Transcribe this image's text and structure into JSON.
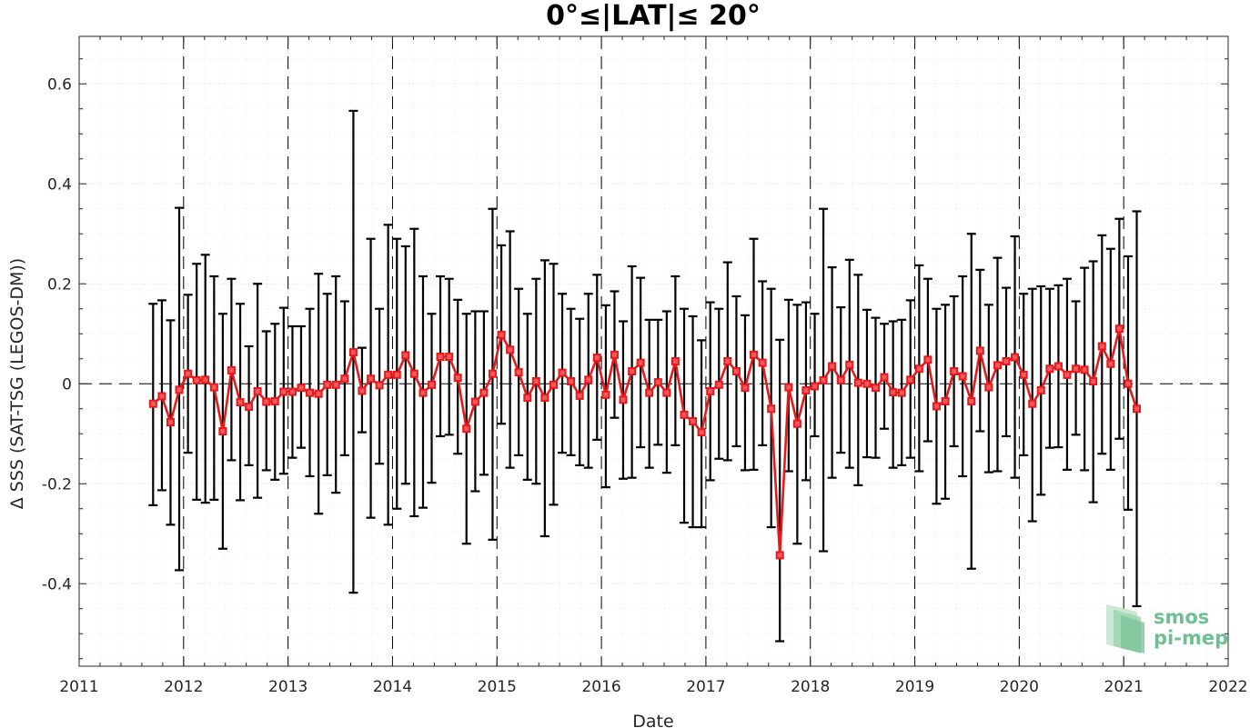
{
  "chart_data": {
    "type": "line",
    "title": "0°≤|LAT|≤ 20°",
    "xlabel": "Date",
    "ylabel": "Δ SSS (SAT-TSG (LEGOS-DM))",
    "xlim": [
      2011,
      2022
    ],
    "ylim": [
      -0.565,
      0.695
    ],
    "x_ticks": [
      "2011",
      "2012",
      "2013",
      "2014",
      "2015",
      "2016",
      "2017",
      "2018",
      "2019",
      "2020",
      "2021",
      "2022"
    ],
    "y_ticks": [
      {
        "value": -0.4,
        "label": "-0.4"
      },
      {
        "value": -0.2,
        "label": "-0.2"
      },
      {
        "value": 0,
        "label": "0"
      },
      {
        "value": 0.2,
        "label": "0.2"
      },
      {
        "value": 0.4,
        "label": "0.4"
      },
      {
        "value": 0.6,
        "label": "0.6"
      }
    ],
    "grid": true,
    "reference_lines": {
      "zero_line": 0,
      "year_lines": [
        2012,
        2013,
        2014,
        2015,
        2016,
        2017,
        2018,
        2019,
        2020,
        2021
      ]
    },
    "colors": {
      "mean": "#e8191c",
      "error_bar": "#000000",
      "grid": "#d9d9d9"
    },
    "series": [
      {
        "type": "errorbar",
        "marker": "square",
        "x": [
          2011.708,
          2011.792,
          2011.875,
          2011.958,
          2012.042,
          2012.125,
          2012.208,
          2012.292,
          2012.375,
          2012.458,
          2012.542,
          2012.625,
          2012.708,
          2012.792,
          2012.875,
          2012.958,
          2013.042,
          2013.125,
          2013.208,
          2013.292,
          2013.375,
          2013.458,
          2013.542,
          2013.625,
          2013.708,
          2013.792,
          2013.875,
          2013.958,
          2014.042,
          2014.125,
          2014.208,
          2014.292,
          2014.375,
          2014.458,
          2014.542,
          2014.625,
          2014.708,
          2014.792,
          2014.875,
          2014.958,
          2015.042,
          2015.125,
          2015.208,
          2015.292,
          2015.375,
          2015.458,
          2015.542,
          2015.625,
          2015.708,
          2015.792,
          2015.875,
          2015.958,
          2016.042,
          2016.125,
          2016.208,
          2016.292,
          2016.375,
          2016.458,
          2016.542,
          2016.625,
          2016.708,
          2016.792,
          2016.875,
          2016.958,
          2017.042,
          2017.125,
          2017.208,
          2017.292,
          2017.375,
          2017.458,
          2017.542,
          2017.625,
          2017.708,
          2017.792,
          2017.875,
          2017.958,
          2018.042,
          2018.125,
          2018.208,
          2018.292,
          2018.375,
          2018.458,
          2018.542,
          2018.625,
          2018.708,
          2018.792,
          2018.875,
          2018.958,
          2019.042,
          2019.125,
          2019.208,
          2019.292,
          2019.375,
          2019.458,
          2019.542,
          2019.625,
          2019.708,
          2019.792,
          2019.875,
          2019.958,
          2020.042,
          2020.125,
          2020.208,
          2020.292,
          2020.375,
          2020.458,
          2020.542,
          2020.625,
          2020.708,
          2020.792,
          2020.875,
          2020.958,
          2021.042,
          2021.125
        ],
        "y": [
          -0.04,
          -0.025,
          -0.077,
          -0.012,
          0.02,
          0.007,
          0.008,
          -0.007,
          -0.095,
          0.027,
          -0.037,
          -0.046,
          -0.015,
          -0.036,
          -0.035,
          -0.016,
          -0.016,
          -0.008,
          -0.018,
          -0.02,
          -0.002,
          -0.002,
          0.01,
          0.063,
          -0.014,
          0.01,
          -0.003,
          0.018,
          0.018,
          0.057,
          0.02,
          -0.018,
          -0.002,
          0.054,
          0.054,
          0.012,
          -0.09,
          -0.036,
          -0.018,
          0.02,
          0.098,
          0.068,
          0.023,
          -0.028,
          0.005,
          -0.028,
          -0.002,
          0.022,
          0.005,
          -0.024,
          0.008,
          0.052,
          -0.022,
          0.058,
          -0.032,
          0.025,
          0.042,
          -0.018,
          0.003,
          -0.018,
          0.045,
          -0.062,
          -0.075,
          -0.097,
          -0.015,
          -0.002,
          0.045,
          0.025,
          -0.008,
          0.058,
          0.042,
          -0.05,
          -0.343,
          -0.007,
          -0.08,
          -0.013,
          -0.005,
          0.007,
          0.035,
          0.007,
          0.038,
          0.002,
          0.0,
          -0.008,
          0.013,
          -0.017,
          -0.018,
          0.008,
          0.03,
          0.048,
          -0.045,
          -0.035,
          0.025,
          0.015,
          -0.035,
          0.066,
          -0.007,
          0.037,
          0.045,
          0.053,
          0.018,
          -0.04,
          -0.013,
          0.03,
          0.035,
          0.018,
          0.03,
          0.028,
          0.005,
          0.075,
          0.04,
          0.11,
          0.0,
          -0.05
        ],
        "y_upper": [
          0.16,
          0.167,
          0.127,
          0.352,
          0.178,
          0.24,
          0.258,
          0.215,
          0.14,
          0.21,
          0.16,
          0.075,
          0.2,
          0.105,
          0.12,
          0.152,
          0.115,
          0.115,
          0.15,
          0.22,
          0.18,
          0.215,
          0.165,
          0.546,
          0.072,
          0.29,
          0.15,
          0.318,
          0.29,
          0.275,
          0.31,
          0.215,
          0.14,
          0.215,
          0.21,
          0.168,
          0.14,
          0.145,
          0.145,
          0.35,
          0.277,
          0.305,
          0.19,
          0.14,
          0.21,
          0.247,
          0.24,
          0.18,
          0.15,
          0.13,
          0.18,
          0.218,
          0.157,
          0.185,
          0.125,
          0.235,
          0.212,
          0.128,
          0.128,
          0.145,
          0.215,
          0.15,
          0.135,
          0.087,
          0.163,
          0.15,
          0.243,
          0.175,
          0.137,
          0.29,
          0.205,
          0.19,
          0.088,
          0.168,
          0.158,
          0.163,
          0.14,
          0.35,
          0.233,
          0.153,
          0.248,
          0.218,
          0.148,
          0.132,
          0.12,
          0.125,
          0.128,
          0.167,
          0.237,
          0.21,
          0.15,
          0.158,
          0.175,
          0.215,
          0.3,
          0.228,
          0.158,
          0.252,
          0.192,
          0.295,
          0.18,
          0.19,
          0.195,
          0.19,
          0.197,
          0.21,
          0.165,
          0.232,
          0.245,
          0.297,
          0.27,
          0.33,
          0.255,
          0.345
        ],
        "y_lower": [
          -0.243,
          -0.213,
          -0.282,
          -0.373,
          -0.138,
          -0.232,
          -0.238,
          -0.232,
          -0.33,
          -0.153,
          -0.233,
          -0.163,
          -0.228,
          -0.173,
          -0.192,
          -0.18,
          -0.148,
          -0.128,
          -0.185,
          -0.26,
          -0.183,
          -0.218,
          -0.143,
          -0.418,
          -0.097,
          -0.268,
          -0.16,
          -0.282,
          -0.25,
          -0.2,
          -0.265,
          -0.248,
          -0.198,
          -0.105,
          -0.102,
          -0.14,
          -0.32,
          -0.215,
          -0.182,
          -0.312,
          -0.08,
          -0.168,
          -0.143,
          -0.192,
          -0.2,
          -0.305,
          -0.242,
          -0.138,
          -0.143,
          -0.163,
          -0.168,
          -0.112,
          -0.207,
          -0.068,
          -0.19,
          -0.188,
          -0.127,
          -0.168,
          -0.122,
          -0.178,
          -0.123,
          -0.278,
          -0.287,
          -0.287,
          -0.193,
          -0.15,
          -0.153,
          -0.125,
          -0.173,
          -0.172,
          -0.123,
          -0.287,
          -0.515,
          -0.175,
          -0.32,
          -0.193,
          -0.105,
          -0.335,
          -0.188,
          -0.138,
          -0.168,
          -0.203,
          -0.147,
          -0.148,
          -0.09,
          -0.168,
          -0.163,
          -0.148,
          -0.175,
          -0.115,
          -0.24,
          -0.23,
          -0.125,
          -0.185,
          -0.37,
          -0.095,
          -0.177,
          -0.175,
          -0.105,
          -0.188,
          -0.143,
          -0.275,
          -0.222,
          -0.128,
          -0.127,
          -0.172,
          -0.102,
          -0.173,
          -0.237,
          -0.14,
          -0.172,
          -0.11,
          -0.252,
          -0.445
        ]
      }
    ]
  },
  "logo": {
    "line1": "smos",
    "line2": "pi-mep",
    "colors": {
      "light": "#a8d8b8",
      "mid": "#7cc49a",
      "text": "#6fbf93"
    }
  }
}
